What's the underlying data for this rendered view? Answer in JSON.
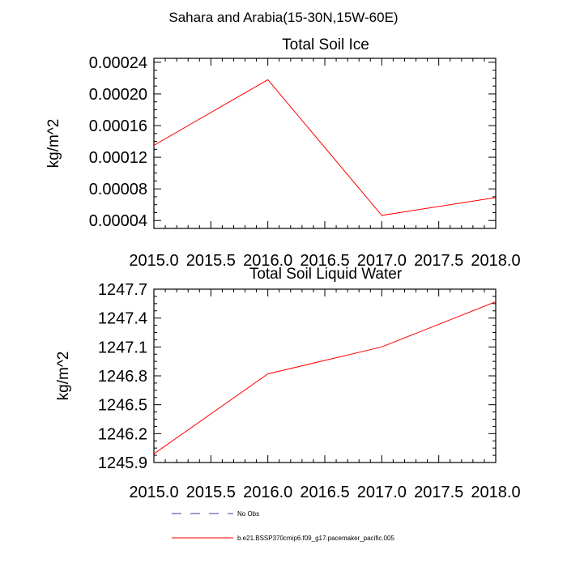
{
  "figure": {
    "suptitle": "Sahara and Arabia(15-30N,15W-60E)"
  },
  "chart_data": [
    {
      "type": "line",
      "title": "Total Soil Ice",
      "xlabel": "",
      "ylabel": "kg/m^2",
      "x": [
        2015.0,
        2016.0,
        2017.0,
        2018.0
      ],
      "xlim": [
        2015.0,
        2018.0
      ],
      "ylim": [
        3e-05,
        0.000245
      ],
      "xticks": [
        "2015.0",
        "2015.5",
        "2016.0",
        "2016.5",
        "2017.0",
        "2017.5",
        "2018.0"
      ],
      "yticks": [
        {
          "value": 4e-05,
          "label": "0.00004"
        },
        {
          "value": 8e-05,
          "label": "0.00008"
        },
        {
          "value": 0.00012,
          "label": "0.00012"
        },
        {
          "value": 0.00016,
          "label": "0.00016"
        },
        {
          "value": 0.0002,
          "label": "0.00020"
        },
        {
          "value": 0.00024,
          "label": "0.00024"
        }
      ],
      "series": [
        {
          "values": [
            0.000135,
            0.000218,
            4.65e-05,
            6.9e-05
          ],
          "color": "#ff0000"
        }
      ]
    },
    {
      "type": "line",
      "title": "Total Soil Liquid Water",
      "xlabel": "",
      "ylabel": "kg/m^2",
      "x": [
        2015.0,
        2016.0,
        2017.0,
        2018.0
      ],
      "xlim": [
        2015.0,
        2018.0
      ],
      "ylim": [
        1245.9,
        1247.7
      ],
      "xticks": [
        "2015.0",
        "2015.5",
        "2016.0",
        "2016.5",
        "2017.0",
        "2017.5",
        "2018.0"
      ],
      "yticks": [
        {
          "value": 1245.9,
          "label": "1245.9"
        },
        {
          "value": 1246.2,
          "label": "1246.2"
        },
        {
          "value": 1246.5,
          "label": "1246.5"
        },
        {
          "value": 1246.8,
          "label": "1246.8"
        },
        {
          "value": 1247.1,
          "label": "1247.1"
        },
        {
          "value": 1247.4,
          "label": "1247.4"
        },
        {
          "value": 1247.7,
          "label": "1247.7"
        }
      ],
      "series": [
        {
          "values": [
            1245.99,
            1246.82,
            1247.1,
            1247.57
          ],
          "color": "#ff0000"
        }
      ]
    }
  ],
  "legend": {
    "placement": "bottom",
    "items": [
      {
        "label": "No Obs",
        "color": "#3a3aa8",
        "style": "dashed"
      },
      {
        "label": "b.e21.BSSP370cmip6.f09_g17.pacemaker_pacific.005",
        "color": "#ff0000",
        "style": "solid"
      }
    ]
  }
}
